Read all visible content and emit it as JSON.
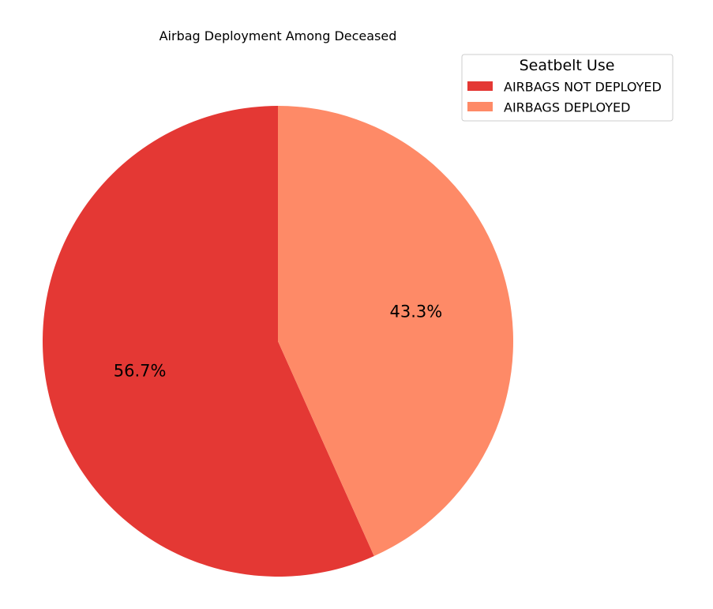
{
  "chart_data": {
    "type": "pie",
    "title": "Airbag Deployment Among Deceased",
    "categories": [
      "AIRBAGS NOT DEPLOYED",
      "AIRBAGS DEPLOYED"
    ],
    "values": [
      56.7,
      43.3
    ],
    "value_labels": [
      "56.7%",
      "43.3%"
    ],
    "colors": [
      "#e43834",
      "#fe8a67"
    ],
    "start_angle_deg": 90,
    "direction": "counterclockwise",
    "legend": {
      "title": "Seatbelt Use",
      "placement": "top-right",
      "entries": [
        "AIRBAGS NOT DEPLOYED",
        "AIRBAGS DEPLOYED"
      ]
    }
  }
}
